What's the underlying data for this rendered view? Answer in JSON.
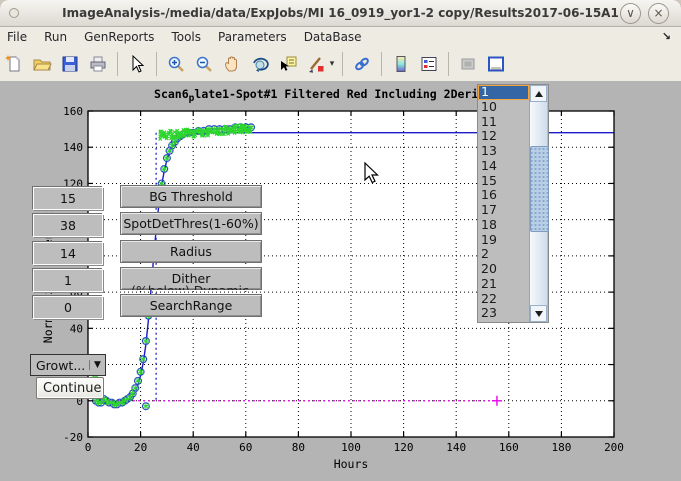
{
  "window": {
    "title": "ImageAnalysis-/media/data/ExpJobs/MI 16_0919_yor1-2 copy/Results2017-06-15A1",
    "minimize_glyph": "∨",
    "close_glyph": "×"
  },
  "menu": {
    "items": [
      "File",
      "Run",
      "GenReports",
      "Tools",
      "Parameters",
      "DataBase"
    ],
    "overflow_glyph": "↘"
  },
  "toolbar": {
    "icons": [
      "new-file",
      "open-folder",
      "save",
      "print",
      "sep",
      "pointer",
      "sep",
      "zoom-in",
      "zoom-out",
      "pan-hand",
      "rotate-3d",
      "data-cursor",
      "brush",
      "dropdown-arrow",
      "sep",
      "link-plots",
      "sep",
      "colorbar",
      "insert-legend",
      "sep",
      "plot-tools",
      "dock-figure"
    ],
    "dropdown_glyph": "▾"
  },
  "controls": {
    "rows": [
      {
        "value": "15",
        "label": "BG Threshold"
      },
      {
        "value": "38",
        "label": "SpotDetThres(1-60%)"
      },
      {
        "value": "14",
        "label": "Radius"
      },
      {
        "value": "1",
        "label": "Dither"
      },
      {
        "value": "0",
        "label": "SearchRange"
      }
    ],
    "bg_threshold_subtext": "(%below) Dynamic",
    "growth_dropdown_label": "Growt...",
    "growth_dropdown_arrow": "▼",
    "continue_label": "Continue"
  },
  "listbox": {
    "items": [
      "1",
      "10",
      "11",
      "12",
      "13",
      "14",
      "15",
      "16",
      "17",
      "18",
      "19",
      "2",
      "20",
      "21",
      "22",
      "23"
    ],
    "selected": "1"
  },
  "chart_data": {
    "type": "scatter",
    "title": "Scan6_plate1-Spot#1 Filtered Red Including 2Deriv Bl",
    "title_parts": {
      "pre": "Scan6",
      "sub": "p",
      "post": "late1-Spot#1 Filtered Red Including 2Deriv Bl"
    },
    "xlabel": "Hours",
    "ylabel": "Normalized Intensity",
    "xlim": [
      0,
      200
    ],
    "ylim": [
      -20,
      160
    ],
    "xticks": [
      0,
      20,
      40,
      60,
      80,
      100,
      120,
      140,
      160,
      180,
      200
    ],
    "yticks": [
      -20,
      0,
      20,
      40,
      60,
      80,
      100,
      120,
      140,
      160
    ],
    "grid": true,
    "plateau_value": 148,
    "measured_points": [
      [
        3,
        0
      ],
      [
        4,
        -1
      ],
      [
        5,
        -1
      ],
      [
        6,
        1
      ],
      [
        7,
        0
      ],
      [
        8,
        -1
      ],
      [
        9,
        -1
      ],
      [
        10,
        -2
      ],
      [
        11,
        -2
      ],
      [
        12,
        -1
      ],
      [
        13,
        -1
      ],
      [
        14,
        0
      ],
      [
        15,
        1
      ],
      [
        16,
        2
      ],
      [
        17,
        4
      ],
      [
        18,
        7
      ],
      [
        19,
        11
      ],
      [
        20,
        16
      ],
      [
        21,
        23
      ],
      [
        22,
        33
      ],
      [
        23,
        47
      ],
      [
        24,
        64
      ],
      [
        25,
        82
      ],
      [
        26,
        98
      ],
      [
        27,
        110
      ],
      [
        28,
        120
      ],
      [
        29,
        128
      ],
      [
        30,
        134
      ],
      [
        31,
        138
      ],
      [
        32,
        141
      ],
      [
        33,
        143
      ],
      [
        34,
        145
      ],
      [
        35,
        146
      ],
      [
        36,
        147
      ],
      [
        38,
        148
      ],
      [
        40,
        148
      ],
      [
        42,
        149
      ],
      [
        44,
        149
      ],
      [
        46,
        150
      ],
      [
        48,
        150
      ],
      [
        50,
        150
      ],
      [
        52,
        150
      ],
      [
        54,
        150
      ],
      [
        56,
        151
      ],
      [
        58,
        151
      ],
      [
        60,
        151
      ],
      [
        62,
        151
      ]
    ],
    "fit_points": [
      [
        5,
        -1
      ],
      [
        10,
        -2
      ],
      [
        14,
        -1
      ],
      [
        16,
        1
      ],
      [
        18,
        5
      ],
      [
        19,
        9
      ],
      [
        20,
        14
      ],
      [
        21,
        21
      ],
      [
        22,
        31
      ],
      [
        23,
        45
      ],
      [
        24,
        62
      ],
      [
        25,
        80
      ],
      [
        26,
        96
      ],
      [
        27,
        109
      ],
      [
        28,
        119
      ],
      [
        29,
        127
      ],
      [
        30,
        133
      ],
      [
        31,
        137
      ],
      [
        32,
        140
      ],
      [
        33,
        142
      ],
      [
        34,
        144
      ],
      [
        36,
        146
      ],
      [
        38,
        147
      ],
      [
        40,
        147.5
      ],
      [
        45,
        148
      ],
      [
        200,
        148
      ]
    ],
    "plateau_cluster": {
      "t_start": 27,
      "t_end": 62,
      "v_start": 146.5,
      "v_end": 150.5,
      "jitter": 2.2,
      "count": 150
    },
    "baseline": {
      "y": 0,
      "x0": 0,
      "x1": 155.5,
      "end_marker": "+"
    },
    "event_vline": {
      "x": 25.9,
      "y0": 0,
      "y1": 148
    },
    "outlier_points": [
      [
        22,
        -3
      ]
    ],
    "isolated_star_points": [
      [
        2.7,
        14
      ]
    ],
    "colors": {
      "fit_line": "#1b1bc8",
      "circle_marker": "#2741cc",
      "star_marker": "#2ed52e",
      "baseline": "#ee00ee",
      "event_vline": "#2525cc",
      "plot_bg": "#ffffff",
      "figure_bg": "#b4b4b4",
      "control_bg": "#bdbdbd",
      "selection": "#3465a4",
      "selection_ring": "#f5a33b"
    }
  }
}
